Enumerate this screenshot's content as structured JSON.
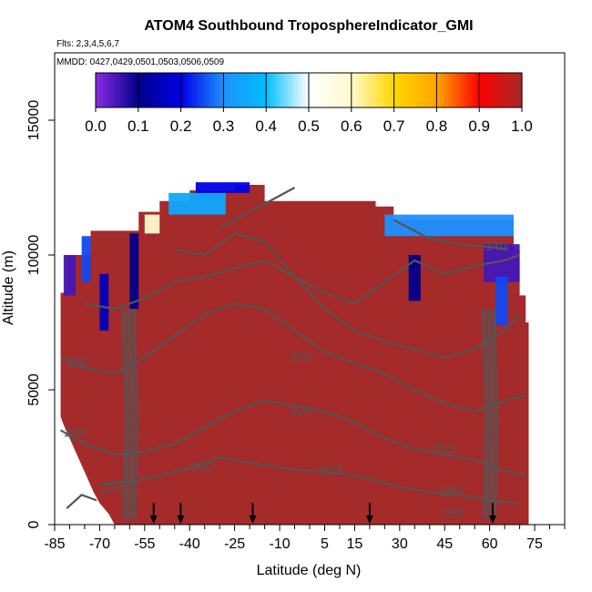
{
  "chart_data": {
    "type": "heatmap",
    "title": "ATOM4 Southbound TroposphereIndicator_GMI",
    "subtitle_flights": "Flts: 2,3,4,5,6,7",
    "subtitle_dates": "MMDD: 0427,0429,0501,0503,0506,0509",
    "xlabel": "Latitude (deg N)",
    "ylabel": "Altitude (m)",
    "xlim": [
      -85,
      85
    ],
    "ylim": [
      0,
      17500
    ],
    "x_tick_labels": [
      "-85",
      "-70",
      "-55",
      "-40",
      "-25",
      "-10",
      "5",
      "15",
      "30",
      "45",
      "60",
      "75"
    ],
    "x_tick_values": [
      -85,
      -70,
      -55,
      -40,
      -25,
      -10,
      5,
      15,
      30,
      45,
      60,
      75
    ],
    "x_minor_tick_values": [
      -80,
      -75,
      -65,
      -60,
      -50,
      -45,
      -35,
      -30,
      -20,
      -15,
      -5,
      0,
      10,
      20,
      25,
      35,
      40,
      50,
      55,
      65,
      70,
      80,
      85
    ],
    "y_tick_labels": [
      "0",
      "5000",
      "10000",
      "15000"
    ],
    "y_tick_values": [
      0,
      5000,
      10000,
      15000
    ],
    "colorbar": {
      "min": 0.0,
      "max": 1.0,
      "tick_labels": [
        "0.0",
        "0.1",
        "0.2",
        "0.3",
        "0.4",
        "0.5",
        "0.6",
        "0.7",
        "0.8",
        "0.9",
        "1.0"
      ],
      "tick_values": [
        0,
        0.1,
        0.2,
        0.3,
        0.4,
        0.5,
        0.6,
        0.7,
        0.8,
        0.9,
        1.0
      ],
      "colors": [
        "#8a2be2",
        "#00008b",
        "#0000e6",
        "#1e90ff",
        "#00bfff",
        "#ffffff",
        "#fffacd",
        "#ffd700",
        "#ffa500",
        "#ff0000",
        "#a52a2a"
      ]
    },
    "field_color_troposphere": "#a52a2a",
    "field_value_troposphere": 1.0,
    "contour_color": "#555555",
    "contour_labels": [
      {
        "text": "340",
        "lat": 62,
        "alt": 10300
      },
      {
        "text": "330",
        "lat": -3,
        "alt": 6200
      },
      {
        "text": "320",
        "lat": -3,
        "alt": 4200
      },
      {
        "text": "310",
        "lat": 7,
        "alt": 2000
      },
      {
        "text": "300",
        "lat": 45,
        "alt": 2800
      },
      {
        "text": "300",
        "lat": -36,
        "alt": 2100
      },
      {
        "text": "290",
        "lat": -77,
        "alt": 6000
      },
      {
        "text": "290",
        "lat": 47,
        "alt": 1200
      },
      {
        "text": "280",
        "lat": -78,
        "alt": 3400
      },
      {
        "text": "280",
        "lat": 48,
        "alt": 400
      },
      {
        "text": "270",
        "lat": -66,
        "alt": 1300
      }
    ],
    "arrow_markers_lat": [
      -52,
      -43,
      -19,
      20,
      61
    ],
    "grid": false,
    "legend": "colorbar top"
  }
}
